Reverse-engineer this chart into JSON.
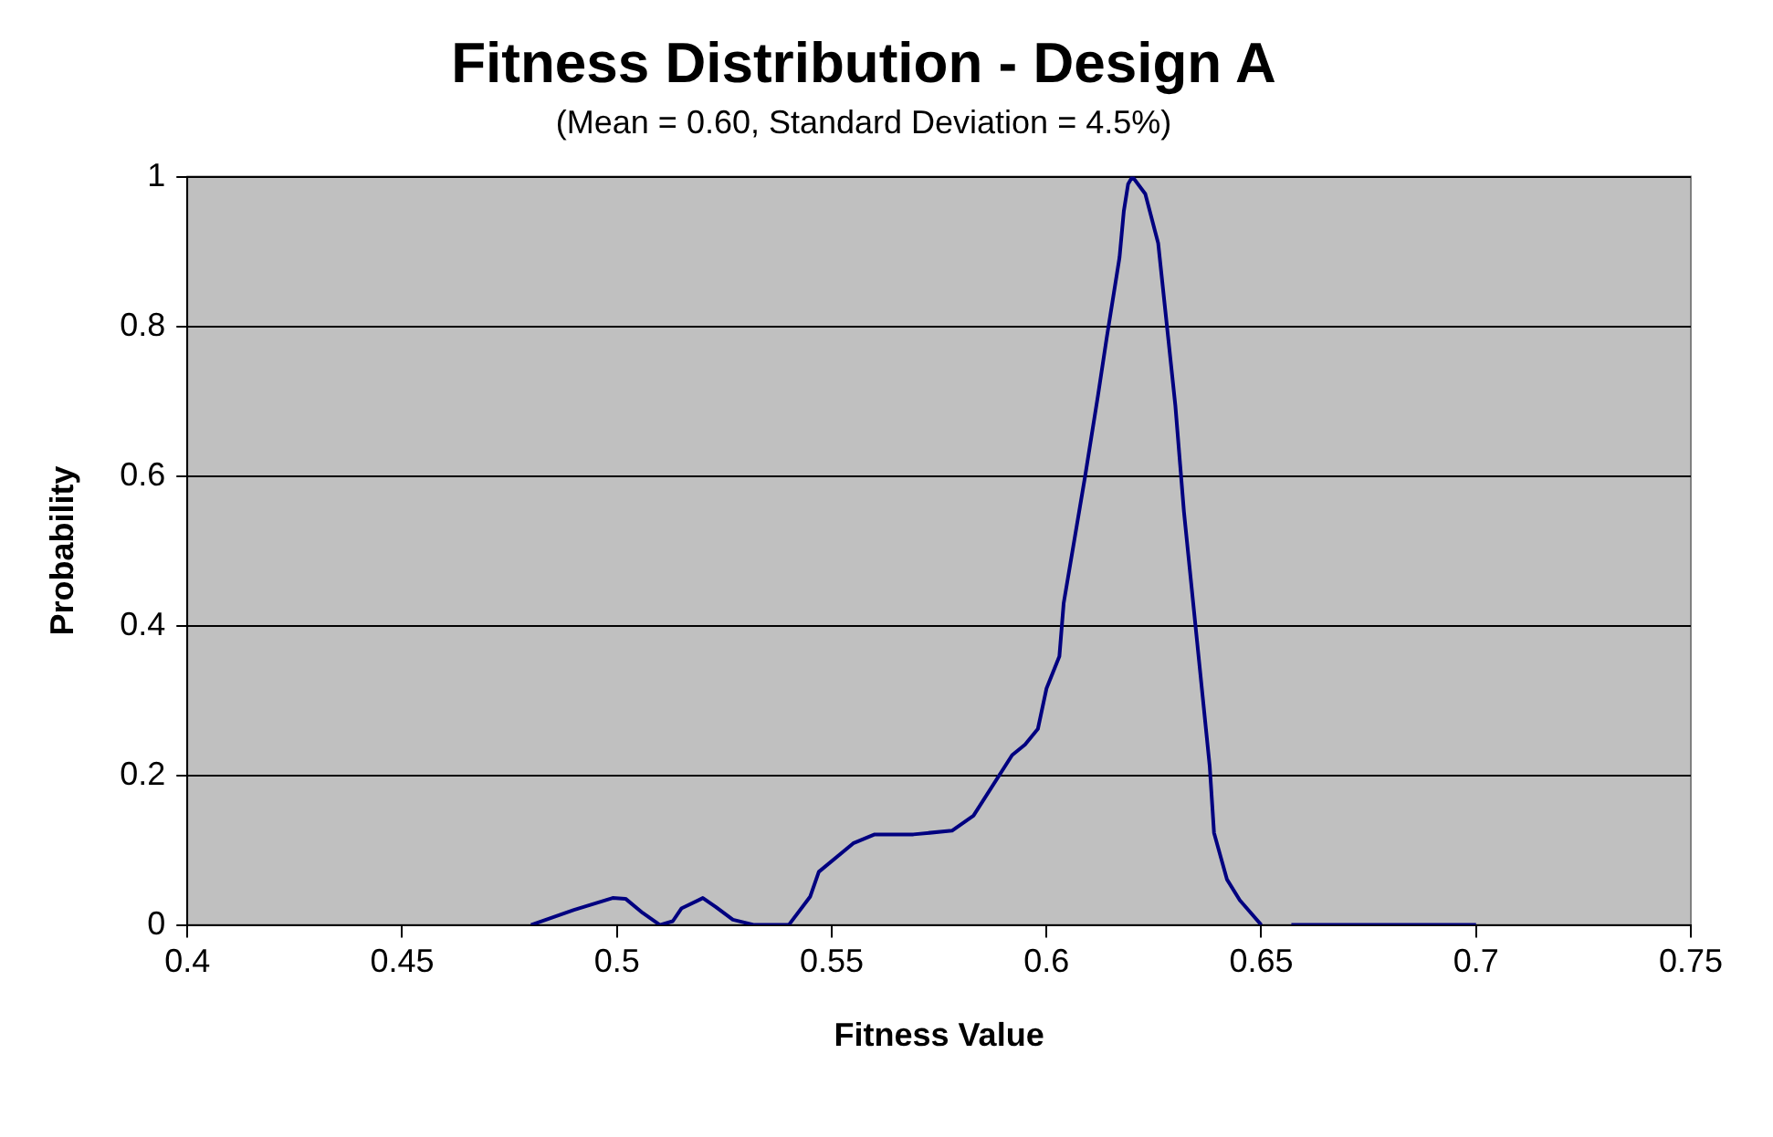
{
  "chart_data": {
    "type": "line",
    "title": "Fitness Distribution - Design A",
    "subtitle": "(Mean = 0.60, Standard Deviation = 4.5%)",
    "xlabel": "Fitness Value",
    "ylabel": "Probability",
    "x": [
      0.48,
      0.49,
      0.499,
      0.502,
      0.506,
      0.51,
      0.513,
      0.515,
      0.52,
      0.523,
      0.527,
      0.532,
      0.54,
      0.545,
      0.547,
      0.555,
      0.56,
      0.569,
      0.578,
      0.583,
      0.592,
      0.595,
      0.598,
      0.6,
      0.603,
      0.604,
      0.609,
      0.612,
      0.614,
      0.617,
      0.618,
      0.619,
      0.62,
      0.623,
      0.626,
      0.63,
      0.632,
      0.635,
      0.638,
      0.639,
      0.642,
      0.645,
      0.65,
      0.654,
      0.657,
      0.7
    ],
    "series": [
      {
        "color": "#000080",
        "values": [
          0,
          0.02,
          0.036,
          0.035,
          0.016,
          0,
          0.005,
          0.022,
          0.036,
          0.024,
          0.007,
          0,
          0,
          0.038,
          0.071,
          0.109,
          0.121,
          0.121,
          0.126,
          0.146,
          0.227,
          0.241,
          0.262,
          0.316,
          0.359,
          0.43,
          0.6,
          0.708,
          0.784,
          0.892,
          0.954,
          0.99,
          1,
          0.977,
          0.911,
          0.694,
          0.552,
          0.382,
          0.212,
          0.123,
          0.061,
          0.033,
          0,
          null,
          0,
          0
        ]
      }
    ],
    "xlim": [
      0.4,
      0.75
    ],
    "xticks": [
      0.4,
      0.45,
      0.5,
      0.55,
      0.6,
      0.65,
      0.7,
      0.75
    ],
    "ylim": [
      0,
      1
    ],
    "yticks": [
      0,
      0.2,
      0.4,
      0.6,
      0.8,
      1
    ],
    "grid": "y",
    "legend": false,
    "marker": "none",
    "line_style": "solid"
  }
}
